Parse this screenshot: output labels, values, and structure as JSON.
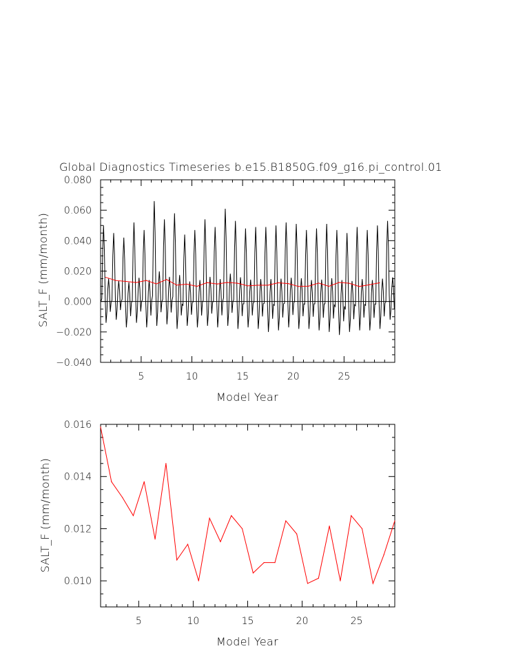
{
  "title": "Global Diagnostics Timeseries b.e15.B1850G.f09_g16.pi_control.01",
  "colors": {
    "monthly": "#000000",
    "annual": "#ff0000",
    "axis": "#000000"
  },
  "chart_data": [
    {
      "type": "line",
      "xlabel": "Model Year",
      "ylabel": "SALT_F (mm/month)",
      "xlim": [
        1,
        30
      ],
      "ylim": [
        -0.04,
        0.08
      ],
      "xticks": [
        5,
        10,
        15,
        20,
        25
      ],
      "xtick_labels": [
        "5",
        "10",
        "15",
        "20",
        "25"
      ],
      "yticks": [
        -0.04,
        -0.02,
        0.0,
        0.02,
        0.04,
        0.06,
        0.08
      ],
      "ytick_labels": [
        "−0.040",
        "−0.020",
        "0.000",
        "0.020",
        "0.040",
        "0.060",
        "0.080"
      ],
      "zero_line": true,
      "series": [
        {
          "color": "#000000",
          "kind": "monthly",
          "start_year": 1.04,
          "step": 0.0833,
          "peaks": [
            0.05,
            0.045,
            0.042,
            0.052,
            0.047,
            0.066,
            0.054,
            0.058,
            0.044,
            0.047,
            0.054,
            0.049,
            0.061,
            0.053,
            0.048,
            0.049,
            0.049,
            0.05,
            0.052,
            0.051,
            0.047,
            0.048,
            0.051,
            0.047,
            0.045,
            0.049,
            0.047,
            0.05,
            0.053
          ],
          "troughs": [
            -0.014,
            -0.012,
            -0.017,
            -0.014,
            -0.017,
            -0.016,
            -0.015,
            -0.018,
            -0.016,
            -0.017,
            -0.016,
            -0.017,
            -0.016,
            -0.018,
            -0.017,
            -0.018,
            -0.02,
            -0.019,
            -0.017,
            -0.018,
            -0.018,
            -0.019,
            -0.02,
            -0.022,
            -0.02,
            -0.019,
            -0.019,
            -0.018,
            -0.012
          ]
        },
        {
          "color": "#ff0000",
          "kind": "annual",
          "x": [
            1.5,
            2.5,
            3.5,
            4.5,
            5.5,
            6.5,
            7.5,
            8.5,
            9.5,
            10.5,
            11.5,
            12.5,
            13.5,
            14.5,
            15.5,
            16.5,
            17.5,
            18.5,
            19.5,
            20.5,
            21.5,
            22.5,
            23.5,
            24.5,
            25.5,
            26.5,
            27.5,
            28.5
          ],
          "values": [
            0.0159,
            0.0138,
            0.0132,
            0.0125,
            0.0138,
            0.0116,
            0.0145,
            0.0108,
            0.0114,
            0.01,
            0.0124,
            0.0115,
            0.0125,
            0.012,
            0.0103,
            0.0107,
            0.0107,
            0.0123,
            0.0118,
            0.0099,
            0.0101,
            0.0121,
            0.01,
            0.0125,
            0.012,
            0.0099,
            0.011,
            0.0123
          ]
        }
      ]
    },
    {
      "type": "line",
      "xlabel": "Model Year",
      "ylabel": "SALT_F (mm/month)",
      "xlim": [
        1.5,
        28.5
      ],
      "ylim": [
        0.009,
        0.016
      ],
      "xticks": [
        5,
        10,
        15,
        20,
        25
      ],
      "xtick_labels": [
        "5",
        "10",
        "15",
        "20",
        "25"
      ],
      "yticks": [
        0.01,
        0.012,
        0.014,
        0.016
      ],
      "ytick_labels": [
        "0.010",
        "0.012",
        "0.014",
        "0.016"
      ],
      "series": [
        {
          "color": "#ff0000",
          "kind": "annual",
          "x": [
            1.5,
            2.5,
            3.5,
            4.5,
            5.5,
            6.5,
            7.5,
            8.5,
            9.5,
            10.5,
            11.5,
            12.5,
            13.5,
            14.5,
            15.5,
            16.5,
            17.5,
            18.5,
            19.5,
            20.5,
            21.5,
            22.5,
            23.5,
            24.5,
            25.5,
            26.5,
            27.5,
            28.5
          ],
          "values": [
            0.0159,
            0.0138,
            0.0132,
            0.0125,
            0.0138,
            0.0116,
            0.0145,
            0.0108,
            0.0114,
            0.01,
            0.0124,
            0.0115,
            0.0125,
            0.012,
            0.0103,
            0.0107,
            0.0107,
            0.0123,
            0.0118,
            0.0099,
            0.0101,
            0.0121,
            0.01,
            0.0125,
            0.012,
            0.0099,
            0.011,
            0.0123
          ]
        }
      ]
    }
  ]
}
